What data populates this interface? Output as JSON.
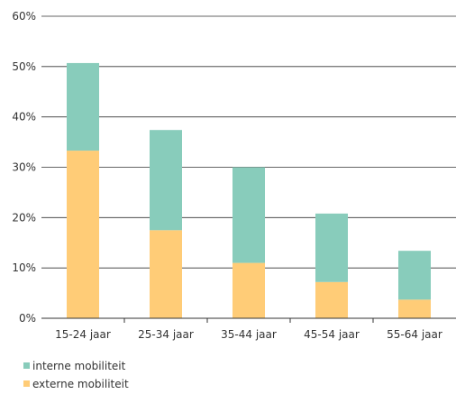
{
  "chart_data": {
    "type": "bar",
    "stacked": true,
    "categories": [
      "15-24 jaar",
      "25-34 jaar",
      "35-44 jaar",
      "45-54 jaar",
      "55-64 jaar"
    ],
    "series": [
      {
        "name": "externe mobiliteit",
        "color": "#FFCC77",
        "values": [
          33.3,
          17.5,
          11.0,
          7.2,
          3.7
        ]
      },
      {
        "name": "interne mobiliteit",
        "color": "#88CCBB",
        "values": [
          17.4,
          19.9,
          19.0,
          13.6,
          9.7
        ]
      }
    ],
    "ylim": [
      0,
      60
    ],
    "yticks": [
      "0%",
      "10%",
      "20%",
      "30%",
      "40%",
      "50%",
      "60%"
    ],
    "grid": true,
    "legend_position": "bottom-left",
    "legend_order": [
      "interne mobiliteit",
      "externe mobiliteit"
    ]
  }
}
